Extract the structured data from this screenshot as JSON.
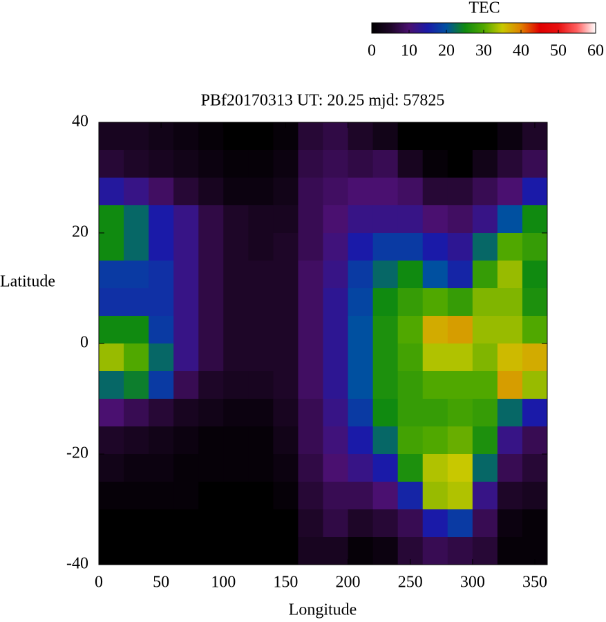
{
  "chart_data": {
    "type": "heatmap",
    "title": "PBf20170313  UT: 20.25  mjd: 57825",
    "x_label": "Longitude",
    "y_label": "Latitude",
    "colorbar_label": "TEC",
    "xlim": [
      0,
      360
    ],
    "ylim": [
      -40,
      40
    ],
    "xticks": [
      0,
      50,
      100,
      150,
      200,
      250,
      300,
      350
    ],
    "yticks": [
      -40,
      -20,
      0,
      20,
      40
    ],
    "clim": [
      0,
      60
    ],
    "cticks": [
      0,
      10,
      20,
      30,
      40,
      50,
      60
    ],
    "colorscale": [
      [
        0,
        "#000000"
      ],
      [
        5,
        "#1e0628"
      ],
      [
        10,
        "#4a1070"
      ],
      [
        15,
        "#1a1aa8"
      ],
      [
        20,
        "#0050a0"
      ],
      [
        25,
        "#108a10"
      ],
      [
        30,
        "#50a800"
      ],
      [
        35,
        "#c8c800"
      ],
      [
        40,
        "#e08000"
      ],
      [
        45,
        "#e00000"
      ],
      [
        50,
        "#e81010"
      ],
      [
        55,
        "#ff6060"
      ],
      [
        60,
        "#ffffff"
      ]
    ],
    "x": [
      10,
      30,
      50,
      70,
      90,
      110,
      130,
      150,
      170,
      190,
      210,
      230,
      250,
      270,
      290,
      310,
      330,
      350
    ],
    "y": [
      37.5,
      32.5,
      27.5,
      22.5,
      17.5,
      12.5,
      7.5,
      2.5,
      -2.5,
      -7.5,
      -12.5,
      -17.5,
      -22.5,
      -27.5,
      -32.5,
      -37.5
    ],
    "z": [
      [
        4,
        4,
        3,
        2,
        1,
        0,
        0,
        1,
        6,
        7,
        5,
        3,
        0,
        0,
        0,
        0,
        2,
        5
      ],
      [
        6,
        5,
        4,
        3,
        2,
        1,
        1,
        2,
        7,
        8,
        7,
        8,
        4,
        1,
        0,
        3,
        6,
        8
      ],
      [
        14,
        12,
        9,
        6,
        4,
        2,
        2,
        3,
        8,
        9,
        10,
        10,
        9,
        6,
        6,
        8,
        10,
        15
      ],
      [
        25,
        22,
        15,
        12,
        7,
        5,
        4,
        4,
        8,
        10,
        12,
        12,
        12,
        10,
        9,
        12,
        20,
        25
      ],
      [
        25,
        22,
        15,
        12,
        7,
        5,
        4,
        5,
        8,
        11,
        15,
        18,
        18,
        15,
        13,
        22,
        30,
        28
      ],
      [
        18,
        18,
        17,
        12,
        7,
        5,
        5,
        5,
        9,
        12,
        18,
        22,
        25,
        20,
        16,
        28,
        33,
        25
      ],
      [
        17,
        17,
        17,
        12,
        7,
        5,
        5,
        5,
        9,
        13,
        19,
        25,
        28,
        30,
        28,
        32,
        32,
        26
      ],
      [
        25,
        25,
        18,
        12,
        7,
        5,
        5,
        5,
        9,
        13,
        20,
        26,
        30,
        37,
        38,
        33,
        33,
        30
      ],
      [
        33,
        30,
        22,
        12,
        7,
        5,
        5,
        5,
        9,
        13,
        20,
        26,
        29,
        34,
        34,
        32,
        36,
        37
      ],
      [
        22,
        24,
        18,
        8,
        5,
        4,
        4,
        5,
        9,
        13,
        20,
        26,
        28,
        30,
        30,
        30,
        38,
        33
      ],
      [
        10,
        8,
        6,
        4,
        3,
        2,
        2,
        4,
        8,
        12,
        18,
        25,
        28,
        28,
        29,
        28,
        22,
        15
      ],
      [
        5,
        4,
        3,
        2,
        1,
        1,
        1,
        3,
        8,
        11,
        15,
        22,
        29,
        30,
        31,
        26,
        12,
        8
      ],
      [
        3,
        2,
        2,
        1,
        1,
        1,
        1,
        2,
        7,
        10,
        12,
        15,
        26,
        34,
        35,
        22,
        8,
        6
      ],
      [
        1,
        1,
        1,
        1,
        0,
        0,
        0,
        1,
        6,
        8,
        8,
        10,
        16,
        33,
        34,
        12,
        5,
        4
      ],
      [
        0,
        0,
        0,
        0,
        0,
        0,
        0,
        0,
        5,
        7,
        5,
        6,
        8,
        15,
        18,
        8,
        2,
        1
      ],
      [
        0,
        0,
        0,
        0,
        0,
        0,
        0,
        0,
        4,
        4,
        1,
        2,
        6,
        8,
        7,
        6,
        1,
        1
      ]
    ]
  }
}
